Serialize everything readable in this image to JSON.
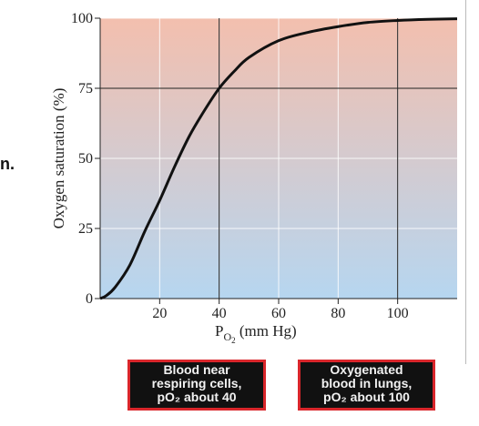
{
  "chart_data": {
    "type": "line",
    "title": "",
    "xlabel_main": "P",
    "xlabel_sub": "O",
    "xlabel_sub2": "2",
    "xlabel_unit": " (mm Hg)",
    "ylabel": "Oxygen saturation (%)",
    "xlim": [
      0,
      120
    ],
    "ylim": [
      0,
      100
    ],
    "x_ticks": [
      20,
      40,
      60,
      80,
      100
    ],
    "y_ticks": [
      0,
      25,
      50,
      75,
      100
    ],
    "x": [
      0,
      2,
      5,
      10,
      15,
      20,
      25,
      30,
      35,
      40,
      45,
      50,
      60,
      70,
      80,
      90,
      100,
      110,
      120
    ],
    "y": [
      0,
      1,
      4,
      12,
      24,
      35,
      47,
      58,
      67,
      75,
      81,
      86,
      92,
      95,
      97,
      98.5,
      99.2,
      99.6,
      99.8
    ],
    "reference_lines_x": [
      40,
      100
    ],
    "reference_lines_y": [
      75
    ],
    "grid": true,
    "colors": {
      "top": "#f3bfae",
      "bottom": "#b6d6f0",
      "curve": "#111111",
      "callout_border": "#d9262b"
    }
  },
  "side_text": "n.",
  "callouts": {
    "left": [
      "Blood near",
      "respiring cells,",
      "pO₂ about 40"
    ],
    "right": [
      "Oxygenated",
      "blood in lungs,",
      "pO₂ about 100"
    ]
  }
}
